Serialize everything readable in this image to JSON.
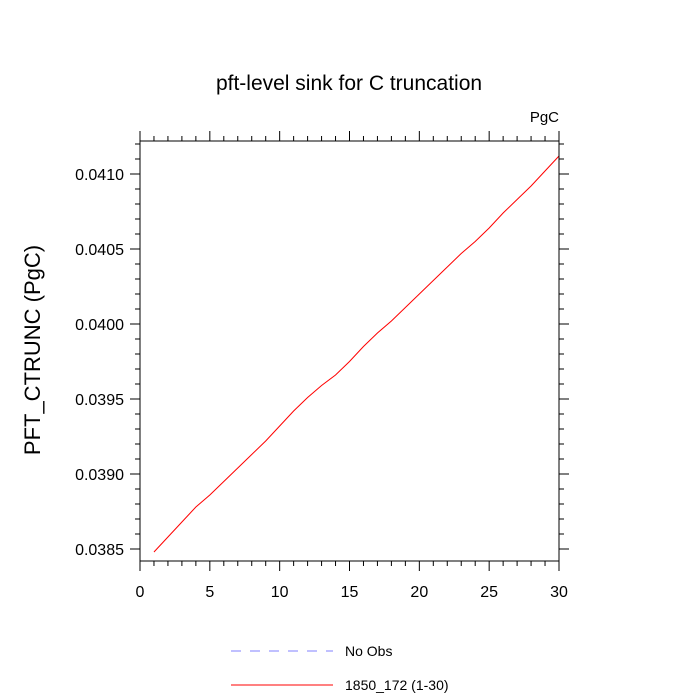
{
  "chart_data": {
    "type": "line",
    "title": "pft-level sink for C truncation",
    "units_label": "PgC",
    "ylabel": "PFT_CTRUNC  (PgC)",
    "xlabel": "",
    "xlim": [
      0,
      30
    ],
    "ylim": [
      0.03842,
      0.04122
    ],
    "xticks": [
      0,
      5,
      10,
      15,
      20,
      25,
      30
    ],
    "xtick_labels": [
      "0",
      "5",
      "10",
      "15",
      "20",
      "25",
      "30"
    ],
    "yticks": [
      0.0385,
      0.039,
      0.0395,
      0.04,
      0.0405,
      0.041
    ],
    "ytick_labels": [
      "0.0385",
      "0.0390",
      "0.0395",
      "0.0400",
      "0.0405",
      "0.0410"
    ],
    "grid": false,
    "legend_position": "bottom",
    "series": [
      {
        "name": "No Obs",
        "color": "#8080ff",
        "dash": true,
        "x": [],
        "y": []
      },
      {
        "name": "1850_172 (1-30)",
        "color": "#ff0000",
        "dash": false,
        "x": [
          1,
          2,
          3,
          4,
          5,
          6,
          7,
          8,
          9,
          10,
          11,
          12,
          13,
          14,
          15,
          16,
          17,
          18,
          19,
          20,
          21,
          22,
          23,
          24,
          25,
          26,
          27,
          28,
          29,
          30
        ],
        "y": [
          0.03848,
          0.03858,
          0.03868,
          0.03878,
          0.03886,
          0.03895,
          0.03904,
          0.03913,
          0.03922,
          0.03932,
          0.03942,
          0.03951,
          0.03959,
          0.03966,
          0.03975,
          0.03985,
          0.03994,
          0.04002,
          0.04011,
          0.0402,
          0.04029,
          0.04038,
          0.04047,
          0.04055,
          0.04064,
          0.04074,
          0.04083,
          0.04092,
          0.04102,
          0.04112
        ]
      }
    ]
  }
}
